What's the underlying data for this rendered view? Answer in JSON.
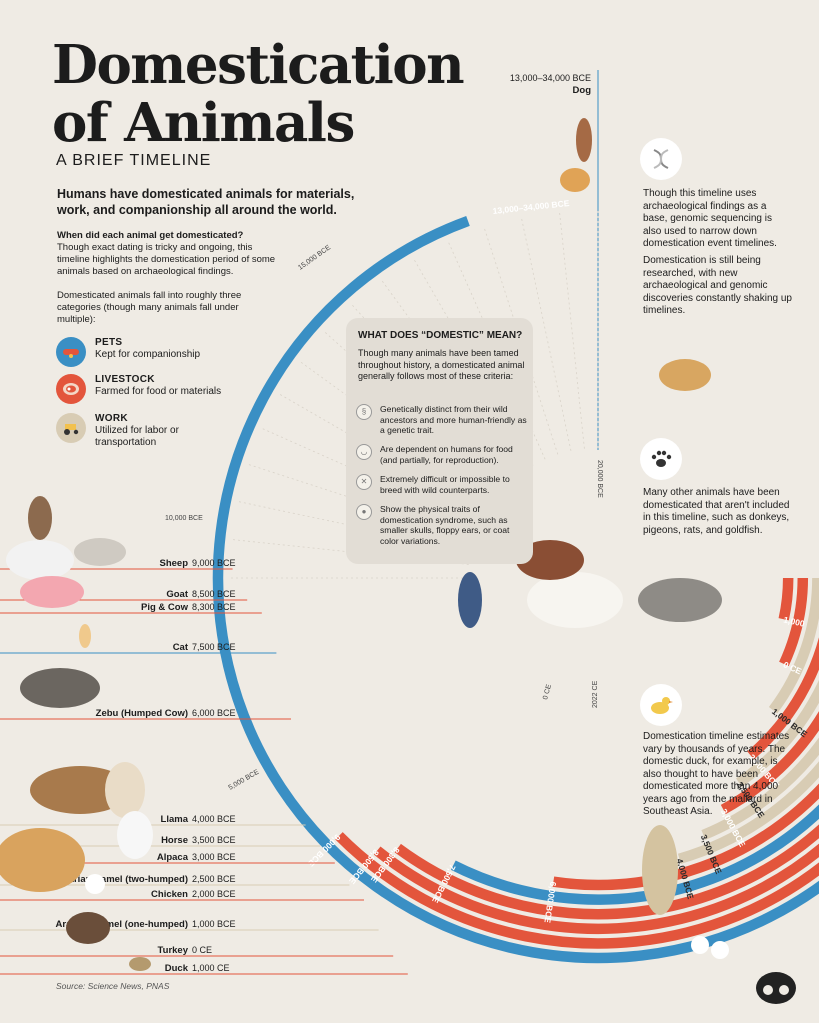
{
  "header": {
    "title_line1": "Domestication",
    "title_line2": "of Animals",
    "subtitle": "A BRIEF TIMELINE"
  },
  "intro": "Humans have domesticated animals for materials, work, and companionship all around the world.",
  "question": {
    "heading": "When did each animal get domesticated?",
    "text": "Though exact dating is tricky and ongoing, this timeline highlights the domestication period of some animals based on archaeological findings."
  },
  "categories_intro": "Domesticated animals fall into roughly three categories (though many animals fall under multiple):",
  "categories": [
    {
      "name": "PETS",
      "desc": "Kept for companionship",
      "color": "#3a8fc4",
      "icon": "dog-collar-icon"
    },
    {
      "name": "LIVESTOCK",
      "desc": "Farmed for food or materials",
      "color": "#e3553c",
      "icon": "meat-icon"
    },
    {
      "name": "WORK",
      "desc": "Utilized for labor or transportation",
      "color": "#d8ccb4",
      "icon": "tractor-icon"
    }
  ],
  "definition": {
    "title": "WHAT DOES “DOMESTIC” MEAN?",
    "intro": "Though many animals have been tamed throughout history, a domesticated animal generally follows most of these criteria:",
    "criteria": [
      {
        "text": "Genetically distinct from their wild ancestors and more human-friendly as a genetic trait.",
        "icon": "dna-icon"
      },
      {
        "text": "Are dependent on humans for food (and partially, for reproduction).",
        "icon": "bowl-icon"
      },
      {
        "text": "Extremely difficult or impossible to breed with wild counterparts.",
        "icon": "cross-icon"
      },
      {
        "text": "Show the physical traits of domestication syndrome, such as smaller skulls, floppy ears, or coat color variations.",
        "icon": "paw-icon"
      }
    ]
  },
  "notes": [
    {
      "text": "Though this timeline uses archaeological findings as a base, genomic sequencing is also used to narrow down domestication event timelines.",
      "icon": "dna-icon"
    },
    {
      "text": "Domestication is still being researched, with new archaeological and genomic discoveries constantly shaking up timelines.",
      "icon": "vet-icon"
    },
    {
      "text": "Many other animals have been domesticated that aren't included in this timeline, such as donkeys, pigeons, rats, and goldfish.",
      "icon": "paw-print-icon"
    },
    {
      "text": "Domestication timeline estimates vary by thousands of years. The domestic duck, for example, is also thought to have been domesticated more than 4,000 years ago from the mallard in Southeast Asia.",
      "icon": "duck-icon"
    }
  ],
  "source": "Source: Science News, PNAS",
  "colors": {
    "pets": "#3a8fc4",
    "livestock": "#e3553c",
    "work": "#d8ccb4",
    "background": "#efebe4"
  },
  "chart_data": {
    "type": "radial timeline",
    "x_axis_ticks": [
      "15,000 BCE",
      "10,000 BCE",
      "5,000 BCE",
      "0 CE",
      "2022 CE",
      "20,000 BCE"
    ],
    "animals": [
      {
        "name": "Dog",
        "label": "13,000–34,000 BCE",
        "ring_label": "13,000–34,000 BCE",
        "year": -13000,
        "category": "pets"
      },
      {
        "name": "Sheep",
        "label": "9,000 BCE",
        "ring_label": "9,000 BCE",
        "year": -9000,
        "category": "livestock"
      },
      {
        "name": "Goat",
        "label": "8,500 BCE",
        "ring_label": "8,500 BCE",
        "year": -8500,
        "category": "livestock"
      },
      {
        "name": "Pig & Cow",
        "label": "8,300 BCE",
        "ring_label": "8,300 BCE",
        "year": -8300,
        "category": "livestock"
      },
      {
        "name": "Cat",
        "label": "7,500 BCE",
        "ring_label": "7,500 BCE",
        "year": -7500,
        "category": "pets"
      },
      {
        "name": "Zebu (Humped Cow)",
        "label": "6,000 BCE",
        "ring_label": "6,000 BCE",
        "year": -6000,
        "category": "livestock"
      },
      {
        "name": "Llama",
        "label": "4,000 BCE",
        "ring_label": "4,000 BCE",
        "year": -4000,
        "category": "work"
      },
      {
        "name": "Horse",
        "label": "3,500 BCE",
        "ring_label": "3,500 BCE",
        "year": -3500,
        "category": "work"
      },
      {
        "name": "Alpaca",
        "label": "3,000 BCE",
        "ring_label": "3,000 BCE",
        "year": -3000,
        "category": "livestock"
      },
      {
        "name": "Bactrian Camel (two-humped)",
        "label": "2,500 BCE",
        "ring_label": "2,500 BCE",
        "year": -2500,
        "category": "work"
      },
      {
        "name": "Chicken",
        "label": "2,000 BCE",
        "ring_label": "2,000 BCE",
        "year": -2000,
        "category": "livestock"
      },
      {
        "name": "Arabian Camel (one-humped)",
        "label": "1,000 BCE",
        "ring_label": "1,000 BCE",
        "year": -1000,
        "category": "work"
      },
      {
        "name": "Turkey",
        "label": "0 CE",
        "ring_label": "0 CE",
        "year": 0,
        "category": "livestock"
      },
      {
        "name": "Duck",
        "label": "1,000 CE",
        "ring_label": "1,000",
        "year": 1000,
        "category": "livestock"
      }
    ]
  }
}
